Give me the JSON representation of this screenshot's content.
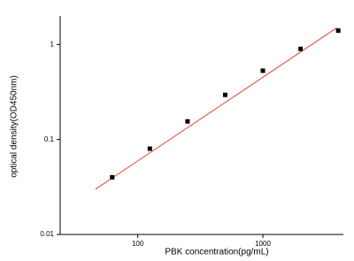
{
  "chart_data": {
    "type": "scatter",
    "x_label": "PBK concentration(pg/mL)",
    "y_label": "optical density(OD450nm)",
    "x": [
      62.5,
      125,
      250,
      500,
      1000,
      2000,
      4000
    ],
    "values": [
      0.04,
      0.08,
      0.155,
      0.295,
      0.53,
      0.9,
      1.4
    ],
    "color": "#000000",
    "fit": {
      "x": [
        46,
        3900
      ],
      "y": [
        0.03,
        1.5
      ],
      "color": "#e8403c"
    },
    "x_log": true,
    "y_log": true,
    "xlim": [
      24,
      4400
    ],
    "ylim": [
      0.01,
      2
    ],
    "xticks": [
      100,
      1000
    ],
    "yticks": [
      {
        "value": 0.01,
        "label": "0.01"
      },
      {
        "value": 0.1,
        "label": "0.1"
      },
      1
    ]
  }
}
